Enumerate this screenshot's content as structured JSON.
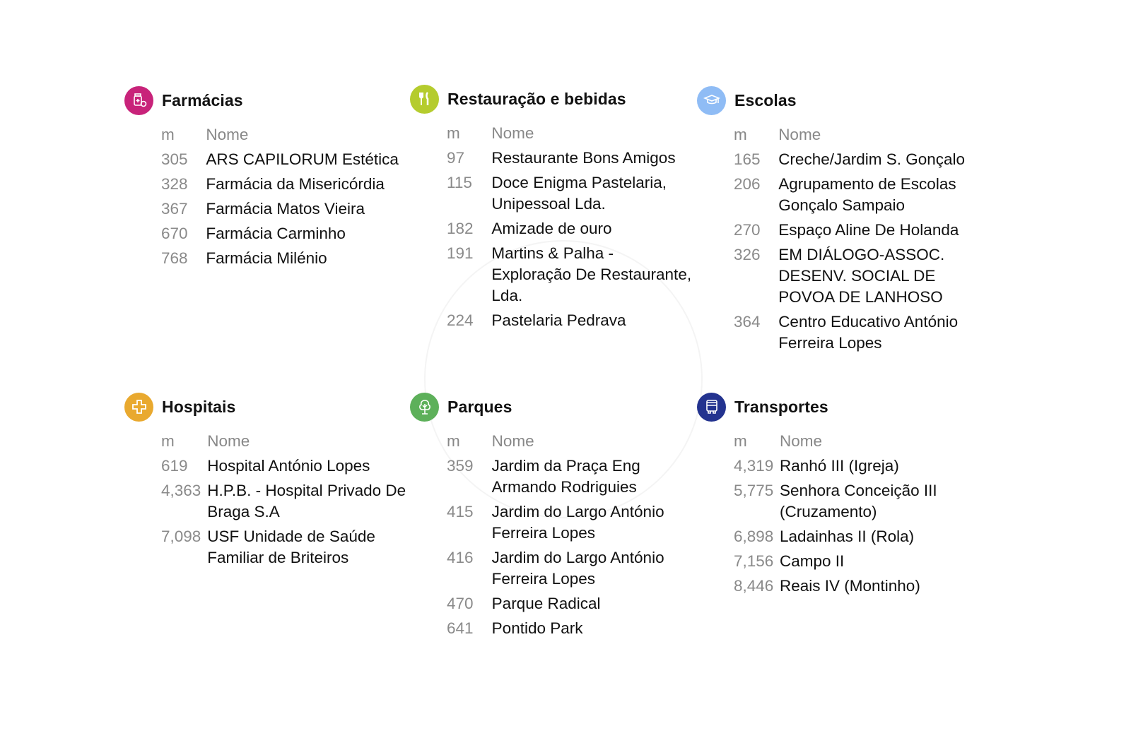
{
  "header_label_m": "m",
  "header_label_name": "Nome",
  "sections": [
    {
      "title": "Farmácias",
      "icon": "pill-bottle-icon",
      "color": "#c8237a",
      "items": [
        {
          "m": "305",
          "name": "ARS CAPILORUM Estética"
        },
        {
          "m": "328",
          "name": "Farmácia da Misericórdia"
        },
        {
          "m": "367",
          "name": "Farmácia Matos Vieira"
        },
        {
          "m": "670",
          "name": "Farmácia Carminho"
        },
        {
          "m": "768",
          "name": "Farmácia Milénio"
        }
      ]
    },
    {
      "title": "Restauração e bebidas",
      "icon": "fork-knife-icon",
      "color": "#b5cc2e",
      "items": [
        {
          "m": "97",
          "name": "Restaurante Bons Amigos"
        },
        {
          "m": "115",
          "name": "Doce Enigma Pastelaria, Unipessoal Lda."
        },
        {
          "m": "182",
          "name": "Amizade de ouro"
        },
        {
          "m": "191",
          "name": "Martins & Palha - Exploração De Restaurante, Lda."
        },
        {
          "m": "224",
          "name": "Pastelaria Pedrava"
        }
      ]
    },
    {
      "title": "Escolas",
      "icon": "graduation-cap-icon",
      "color": "#8fbcf5",
      "items": [
        {
          "m": "165",
          "name": "Creche/Jardim S. Gonçalo"
        },
        {
          "m": "206",
          "name": "Agrupamento de Escolas Gonçalo Sampaio"
        },
        {
          "m": "270",
          "name": "Espaço Aline De Holanda"
        },
        {
          "m": "326",
          "name": "EM DIÁLOGO-ASSOC. DESENV. SOCIAL DE POVOA DE LANHOSO"
        },
        {
          "m": "364",
          "name": "Centro Educativo António Ferreira Lopes"
        }
      ]
    },
    {
      "title": "Hospitais",
      "icon": "medical-cross-icon",
      "color": "#e9a92f",
      "items": [
        {
          "m": "619",
          "name": "Hospital António Lopes"
        },
        {
          "m": "4,363",
          "name": "H.P.B. - Hospital Privado De Braga S.A"
        },
        {
          "m": "7,098",
          "name": "USF Unidade de Saúde Familiar de Briteiros"
        }
      ]
    },
    {
      "title": "Parques",
      "icon": "tree-icon",
      "color": "#5db05a",
      "items": [
        {
          "m": "359",
          "name": "Jardim da Praça Eng Armando Rodriguies"
        },
        {
          "m": "415",
          "name": "Jardim do Largo António Ferreira Lopes"
        },
        {
          "m": "416",
          "name": "Jardim do Largo António Ferreira Lopes"
        },
        {
          "m": "470",
          "name": "Parque Radical"
        },
        {
          "m": "641",
          "name": "Pontido Park"
        }
      ]
    },
    {
      "title": "Transportes",
      "icon": "bus-icon",
      "color": "#23338f",
      "items": [
        {
          "m": "4,319",
          "name": "Ranhó III (Igreja)"
        },
        {
          "m": "5,775",
          "name": "Senhora Conceição III (Cruzamento)"
        },
        {
          "m": "6,898",
          "name": "Ladainhas II (Rola)"
        },
        {
          "m": "7,156",
          "name": "Campo II"
        },
        {
          "m": "8,446",
          "name": "Reais IV (Montinho)"
        }
      ]
    }
  ]
}
